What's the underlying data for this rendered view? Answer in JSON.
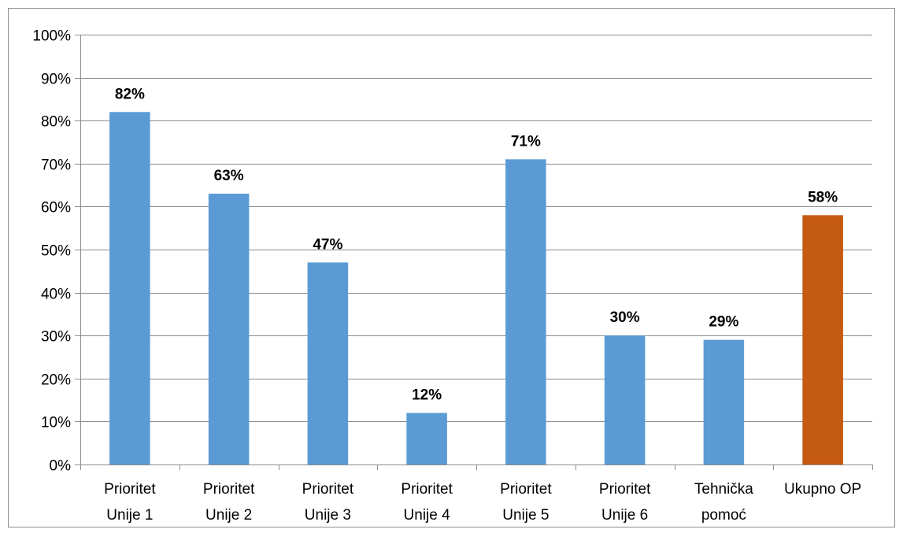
{
  "chart_data": {
    "type": "bar",
    "categories": [
      [
        "Prioritet",
        "Unije 1"
      ],
      [
        "Prioritet",
        "Unije 2"
      ],
      [
        "Prioritet",
        "Unije 3"
      ],
      [
        "Prioritet",
        "Unije 4"
      ],
      [
        "Prioritet",
        "Unije 5"
      ],
      [
        "Prioritet",
        "Unije 6"
      ],
      [
        "Tehnička",
        "pomoć"
      ],
      [
        "Ukupno OP"
      ]
    ],
    "values": [
      82,
      63,
      47,
      12,
      71,
      30,
      29,
      58
    ],
    "data_labels": [
      "82%",
      "63%",
      "47%",
      "12%",
      "71%",
      "30%",
      "29%",
      "58%"
    ],
    "bar_colors": [
      "#5b9bd5",
      "#5b9bd5",
      "#5b9bd5",
      "#5b9bd5",
      "#5b9bd5",
      "#5b9bd5",
      "#5b9bd5",
      "#c55a11"
    ],
    "ylim": [
      0,
      100
    ],
    "y_ticks": [
      0,
      10,
      20,
      30,
      40,
      50,
      60,
      70,
      80,
      90,
      100
    ],
    "y_tick_labels": [
      "0%",
      "10%",
      "20%",
      "30%",
      "40%",
      "50%",
      "60%",
      "70%",
      "80%",
      "90%",
      "100%"
    ],
    "grid": true,
    "legend": "none",
    "title": "",
    "xlabel": "",
    "ylabel": ""
  }
}
